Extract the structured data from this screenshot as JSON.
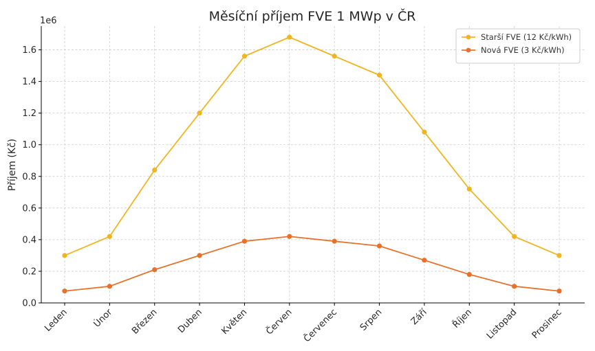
{
  "chart_data": {
    "type": "line",
    "title": "Měsíční příjem FVE 1 MWp v ČR",
    "xlabel": "",
    "ylabel": "Příjem (Kč)",
    "y_scale_label": "1e6",
    "categories": [
      "Leden",
      "Únor",
      "Březen",
      "Duben",
      "Květen",
      "Červen",
      "Červenec",
      "Srpen",
      "Září",
      "Říjen",
      "Listopad",
      "Prosinec"
    ],
    "ylim": [
      0,
      1750000
    ],
    "yticks": [
      0,
      200000,
      400000,
      600000,
      800000,
      1000000,
      1200000,
      1400000,
      1600000
    ],
    "ytick_labels": [
      "0.0",
      "0.2",
      "0.4",
      "0.6",
      "0.8",
      "1.0",
      "1.2",
      "1.4",
      "1.6"
    ],
    "grid": true,
    "legend_position": "top-right",
    "series": [
      {
        "name": "Starší FVE (12 Kč/kWh)",
        "color": "#f0b51f",
        "values": [
          300000,
          420000,
          840000,
          1200000,
          1560000,
          1680000,
          1560000,
          1440000,
          1080000,
          720000,
          420000,
          300000
        ]
      },
      {
        "name": "Nová FVE (3 Kč/kWh)",
        "color": "#e8712a",
        "values": [
          75000,
          105000,
          210000,
          300000,
          390000,
          420000,
          390000,
          360000,
          270000,
          180000,
          105000,
          75000
        ]
      }
    ]
  }
}
